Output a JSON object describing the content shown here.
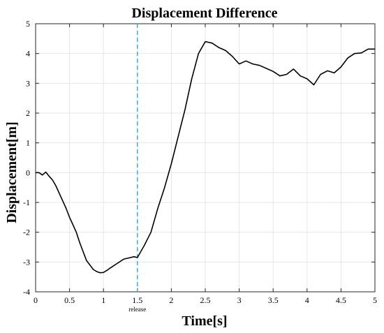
{
  "chart_data": {
    "type": "line",
    "title": "Displacement Difference",
    "xlabel": "Time[s]",
    "ylabel": "Displacement[m]",
    "xlim": [
      0,
      5
    ],
    "ylim": [
      -4,
      5
    ],
    "grid": true,
    "x_ticks": [
      0,
      0.5,
      1,
      1.5,
      2,
      2.5,
      3,
      3.5,
      4,
      4.5,
      5
    ],
    "x_tick_labels": [
      "0",
      "0.5",
      "1",
      "1.5",
      "2",
      "2.5",
      "3",
      "3.5",
      "4",
      "4.5",
      "5"
    ],
    "y_ticks": [
      -4,
      -3,
      -2,
      -1,
      0,
      1,
      2,
      3,
      4,
      5
    ],
    "y_tick_labels": [
      "-4",
      "-3",
      "-2",
      "-1",
      "0",
      "1",
      "2",
      "3",
      "4",
      "5"
    ],
    "series": [
      {
        "color": "#000000",
        "x": [
          0,
          0.05,
          0.1,
          0.15,
          0.2,
          0.25,
          0.3,
          0.35,
          0.4,
          0.45,
          0.5,
          0.55,
          0.6,
          0.65,
          0.7,
          0.75,
          0.8,
          0.85,
          0.9,
          0.95,
          1.0,
          1.05,
          1.1,
          1.2,
          1.3,
          1.4,
          1.45,
          1.5,
          1.6,
          1.7,
          1.8,
          1.9,
          2.0,
          2.1,
          2.2,
          2.3,
          2.4,
          2.5,
          2.6,
          2.7,
          2.8,
          2.9,
          3.0,
          3.1,
          3.2,
          3.3,
          3.4,
          3.5,
          3.6,
          3.7,
          3.8,
          3.9,
          4.0,
          4.1,
          4.2,
          4.3,
          4.4,
          4.5,
          4.6,
          4.7,
          4.8,
          4.9,
          5.0
        ],
        "y": [
          0.0,
          0.0,
          -0.08,
          0.02,
          -0.12,
          -0.25,
          -0.45,
          -0.7,
          -0.95,
          -1.2,
          -1.5,
          -1.75,
          -2.0,
          -2.35,
          -2.65,
          -2.95,
          -3.1,
          -3.25,
          -3.32,
          -3.36,
          -3.35,
          -3.28,
          -3.2,
          -3.05,
          -2.9,
          -2.85,
          -2.82,
          -2.85,
          -2.45,
          -2.0,
          -1.2,
          -0.5,
          0.3,
          1.2,
          2.1,
          3.15,
          4.0,
          4.4,
          4.35,
          4.2,
          4.1,
          3.9,
          3.65,
          3.75,
          3.65,
          3.6,
          3.5,
          3.4,
          3.25,
          3.3,
          3.48,
          3.25,
          3.15,
          2.95,
          3.3,
          3.42,
          3.35,
          3.55,
          3.85,
          4.0,
          4.02,
          4.15,
          4.15
        ]
      }
    ],
    "markers": [
      {
        "x": 1.5,
        "style": "dashed",
        "color": "#29b5e8",
        "label": "release"
      }
    ]
  }
}
